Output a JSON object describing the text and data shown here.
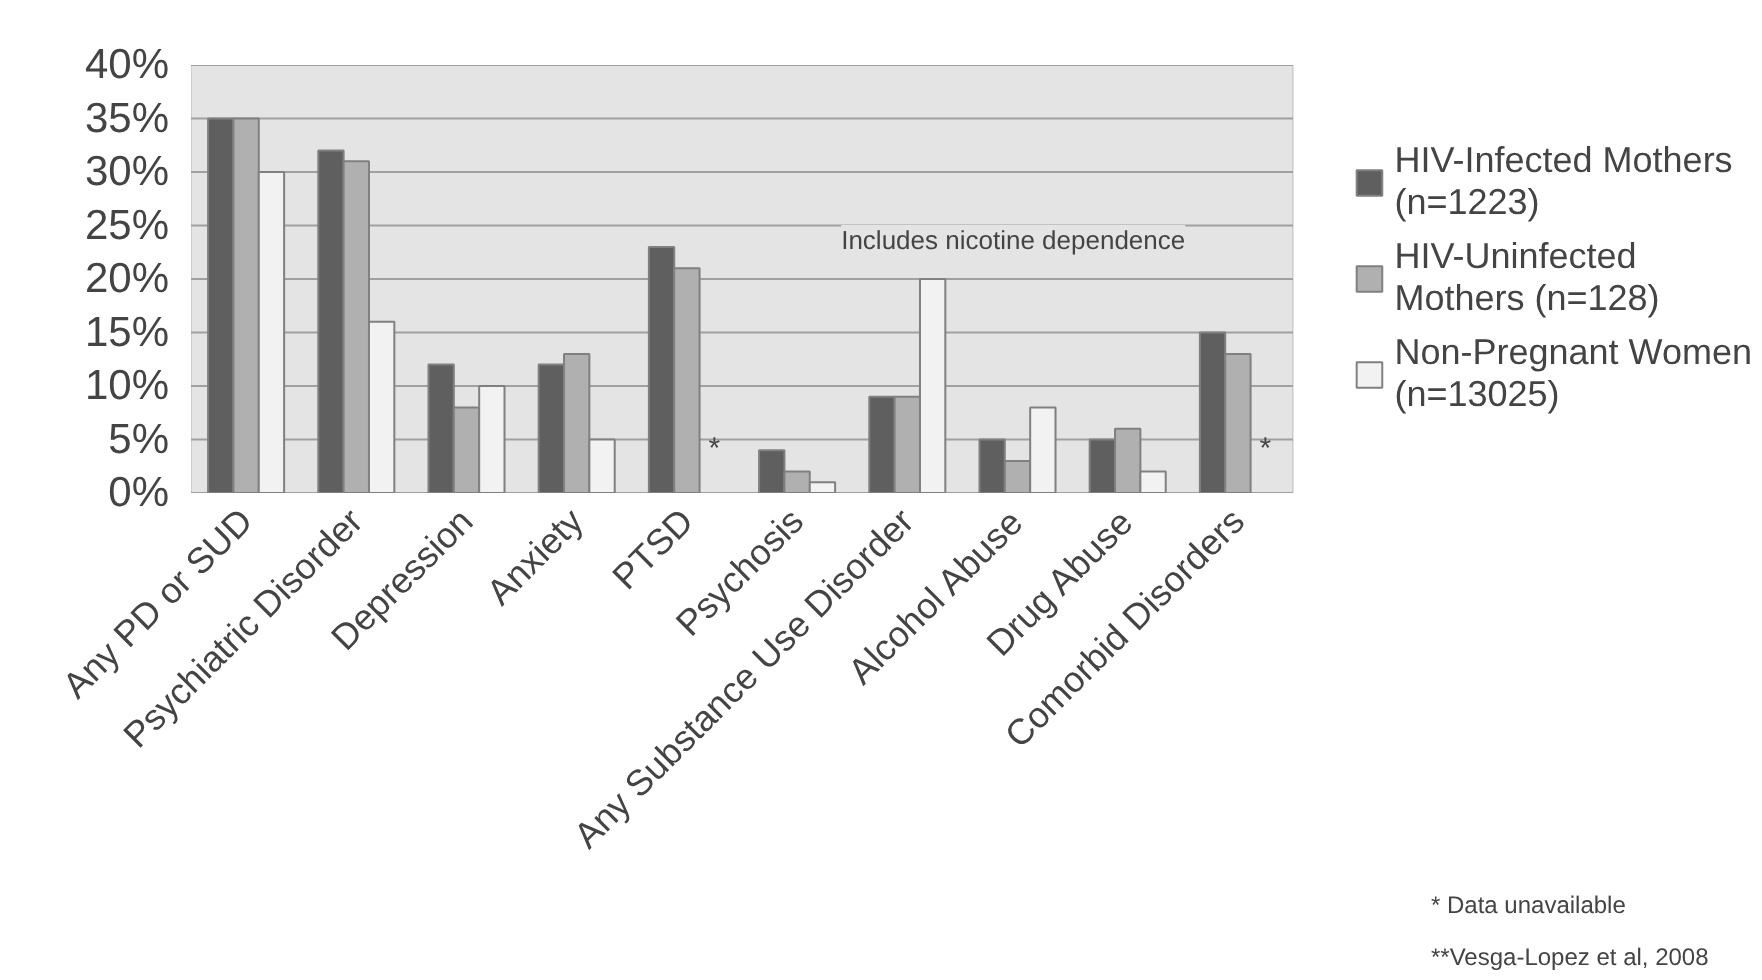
{
  "chart_data": {
    "type": "bar",
    "categories": [
      "Any PD or SUD",
      "Psychiatric Disorder",
      "Depression",
      "Anxiety",
      "PTSD",
      "Psychosis",
      "Any Substance Use Disorder",
      "Alcohol Abuse",
      "Drug Abuse",
      "Comorbid Disorders"
    ],
    "series": [
      {
        "name": "HIV-Infected Mothers (n=1223)",
        "color": "#5f5f5f",
        "values": [
          35,
          32,
          12,
          12,
          23,
          4,
          9,
          5,
          5,
          15
        ]
      },
      {
        "name": "HIV-Uninfected Mothers (n=128)",
        "color": "#b0b0b0",
        "values": [
          35,
          31,
          8,
          13,
          21,
          2,
          9,
          3,
          6,
          13
        ]
      },
      {
        "name": "Non-Pregnant Women (n=13025)",
        "color": "#f2f2f2",
        "values": [
          30,
          16,
          10,
          5,
          null,
          1,
          20,
          8,
          2,
          null
        ]
      }
    ],
    "ylim": [
      0,
      40
    ],
    "yticks": [
      {
        "value": 0,
        "label": "0%"
      },
      {
        "value": 5,
        "label": "5%"
      },
      {
        "value": 10,
        "label": "10%"
      },
      {
        "value": 15,
        "label": "15%"
      },
      {
        "value": 20,
        "label": "20%"
      },
      {
        "value": 25,
        "label": "25%"
      },
      {
        "value": 30,
        "label": "30%"
      },
      {
        "value": 35,
        "label": "35%"
      },
      {
        "value": 40,
        "label": "40%"
      }
    ],
    "grid": "y",
    "legend": "right",
    "annotations": [
      "Includes nicotine dependence",
      "*",
      "*",
      "* Data unavailable",
      "**Vesga-Lopez et al, 2008"
    ]
  }
}
